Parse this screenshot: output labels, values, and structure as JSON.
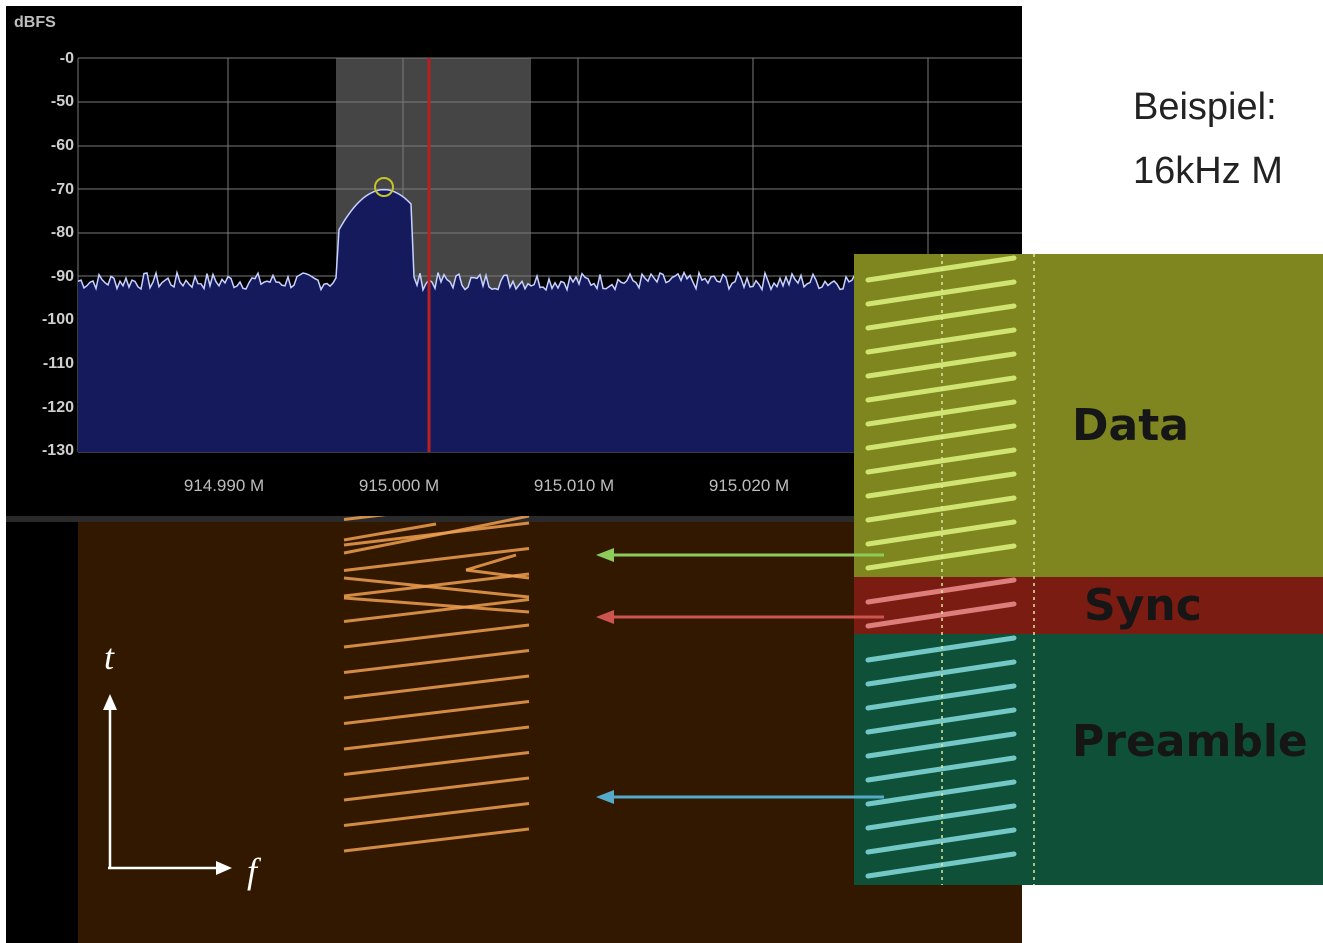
{
  "spectrum": {
    "y_unit": "dBFS",
    "y_ticks": [
      "-0",
      "-50",
      "-60",
      "-70",
      "-80",
      "-90",
      "-100",
      "-110",
      "-120",
      "-130"
    ],
    "x_ticks": [
      "914.990 M",
      "915.000 M",
      "915.010 M",
      "915.020 M"
    ],
    "noise_floor_dbfs": -91,
    "peak_dbfs": -70,
    "colors": {
      "background": "#000000",
      "grid": "#7a7a7a",
      "fill": "#141a5c",
      "trace": "#c8d2ff",
      "marker": "#c4c42a",
      "cursor": "#b82020",
      "selection": "#454545"
    }
  },
  "waterfall": {
    "axis_t": "t",
    "axis_f": "f",
    "colors": {
      "background": "#331800",
      "chirp": "#f0a050"
    }
  },
  "annotation": {
    "line1": "Beispiel:",
    "line2": "16kHz M"
  },
  "legend": {
    "data_label": "Data",
    "sync_label": "Sync",
    "preamble_label": "Preamble",
    "colors": {
      "data": "#7f861f",
      "sync": "#7a1c12",
      "preamble": "#0e5038",
      "data_arrow": "#8ccc5a",
      "sync_arrow": "#cc5550",
      "preamble_arrow": "#55aacc"
    }
  }
}
